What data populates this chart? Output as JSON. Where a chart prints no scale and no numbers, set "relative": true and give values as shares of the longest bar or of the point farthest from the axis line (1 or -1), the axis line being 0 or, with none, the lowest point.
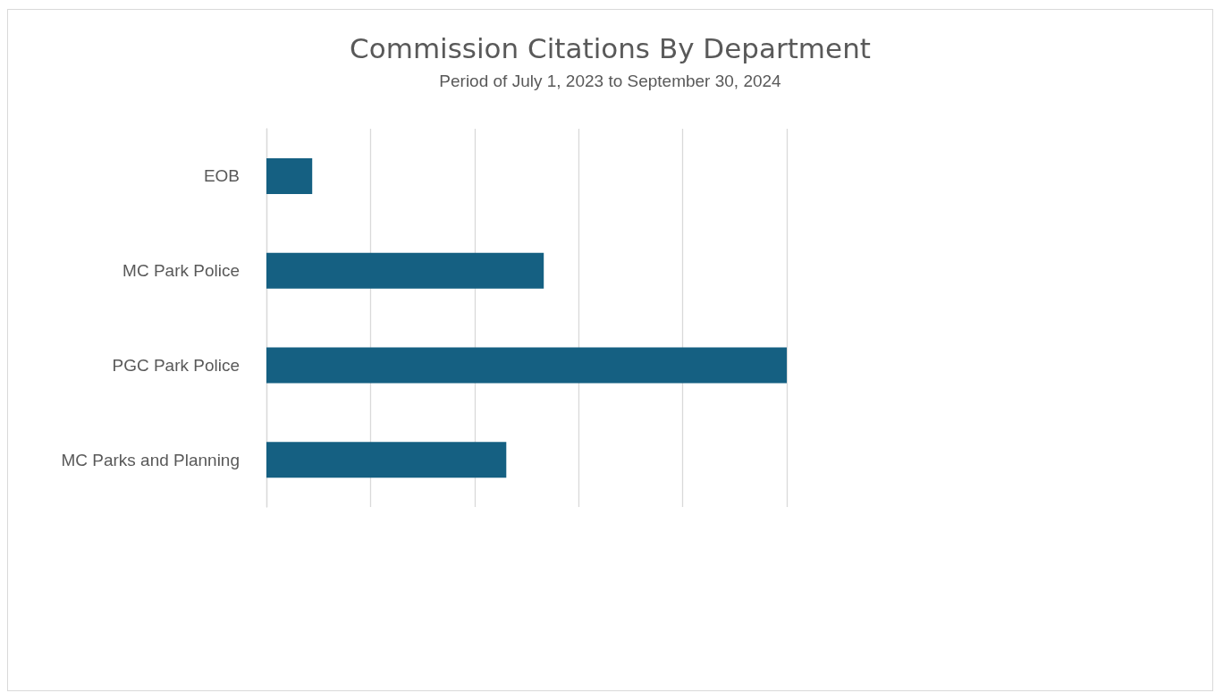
{
  "chart_data": {
    "type": "bar",
    "orientation": "horizontal",
    "relative": true,
    "title": "Commission Citations By Department",
    "subtitle": "Period of July 1, 2023 to September 30, 2024",
    "categories": [
      "EOB",
      "MC Park Police",
      "PGC Park Police",
      "MC Parks and Planning"
    ],
    "values": [
      0.088,
      0.533,
      1,
      0.461
    ],
    "color": "#156082",
    "grid": "x"
  }
}
